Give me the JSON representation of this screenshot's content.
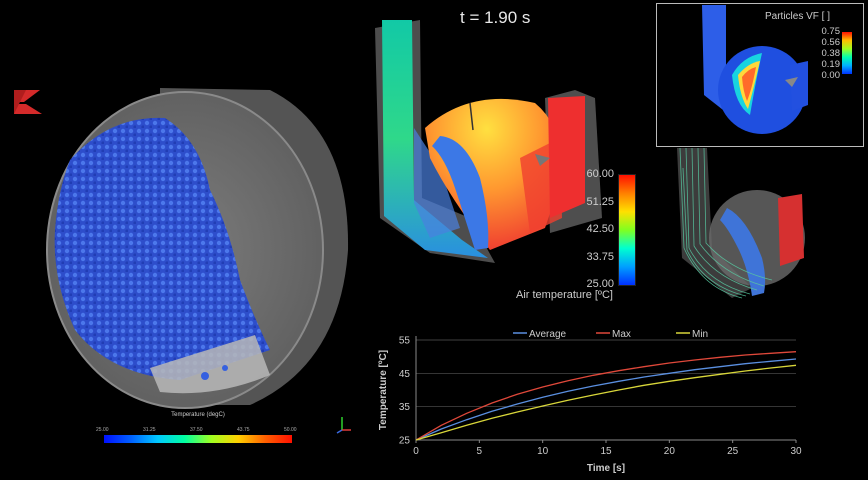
{
  "time_label": "t = 1.90 s",
  "drum_colorbar": {
    "title": "Temperature (degC)",
    "ticks": [
      "25.00",
      "31.25",
      "37.50",
      "43.75",
      "50.00"
    ]
  },
  "air_colorbar": {
    "title": "Air temperature [ºC]",
    "ticks": [
      "60.00",
      "51.25",
      "42.50",
      "33.75",
      "25.00"
    ]
  },
  "particles_colorbar": {
    "title": "Particles VF [ ]",
    "ticks": [
      "0.75",
      "0.56",
      "0.38",
      "0.19",
      "0.00"
    ]
  },
  "colors": {
    "average": "#5a8fe0",
    "max": "#e0483a",
    "min": "#d8d63a",
    "axis": "#cccccc"
  },
  "chart_data": {
    "type": "line",
    "xlabel": "Time [s]",
    "ylabel": "Temperature [ºC]",
    "xlim": [
      0,
      30
    ],
    "ylim": [
      25,
      55
    ],
    "xticks": [
      0,
      5,
      10,
      15,
      20,
      25,
      30
    ],
    "yticks": [
      25,
      35,
      45,
      55
    ],
    "grid": "horizontal",
    "legend_position": "top",
    "x": [
      0,
      2,
      4,
      6,
      8,
      10,
      12,
      14,
      16,
      18,
      20,
      22,
      24,
      26,
      28,
      30
    ],
    "series": [
      {
        "name": "Average",
        "values": [
          25,
          28.3,
          31.1,
          33.6,
          35.8,
          37.8,
          39.6,
          41.2,
          42.6,
          43.9,
          45.0,
          46.1,
          47.0,
          47.9,
          48.6,
          49.3
        ]
      },
      {
        "name": "Max",
        "values": [
          25,
          29.4,
          33.0,
          36.1,
          38.7,
          40.9,
          42.8,
          44.4,
          45.8,
          47.0,
          48.1,
          49.0,
          49.8,
          50.5,
          51.0,
          51.5
        ]
      },
      {
        "name": "Min",
        "values": [
          25,
          27.2,
          29.4,
          31.5,
          33.4,
          35.2,
          36.9,
          38.5,
          40.0,
          41.4,
          42.6,
          43.7,
          44.7,
          45.7,
          46.6,
          47.4
        ]
      }
    ]
  }
}
